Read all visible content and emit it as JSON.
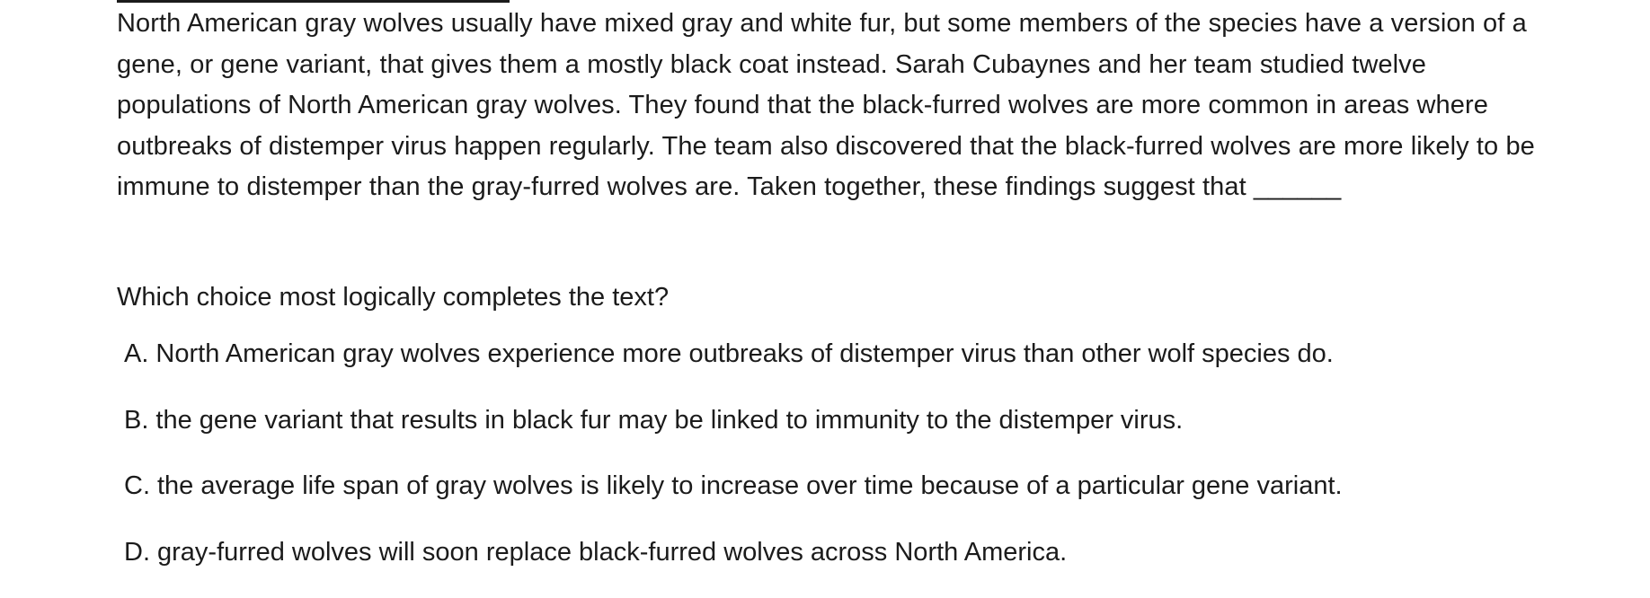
{
  "passage": {
    "text": "North American gray wolves usually have mixed gray and white fur, but some members of the species have a version of a gene, or gene variant, that gives them a mostly black coat instead. Sarah Cubaynes and her team studied twelve populations of North American gray wolves. They found that the black-furred wolves are more common in areas where outbreaks of distemper virus happen regularly. The team also discovered that the black-furred wolves are more likely to be immune to distemper than the gray-furred wolves are. Taken together, these findings suggest that ______"
  },
  "question": {
    "prompt": "Which choice most logically completes the text?"
  },
  "choices": [
    {
      "letter": "A.",
      "text": "North American gray wolves experience more outbreaks of distemper virus than other wolf species do."
    },
    {
      "letter": "B.",
      "text": "the gene variant that results in black fur may be linked to immunity to the distemper virus."
    },
    {
      "letter": "C.",
      "text": "the average life span of gray wolves is likely to increase over time because of a particular gene variant."
    },
    {
      "letter": "D.",
      "text": "gray-furred wolves will soon replace black-furred wolves across North America."
    }
  ]
}
